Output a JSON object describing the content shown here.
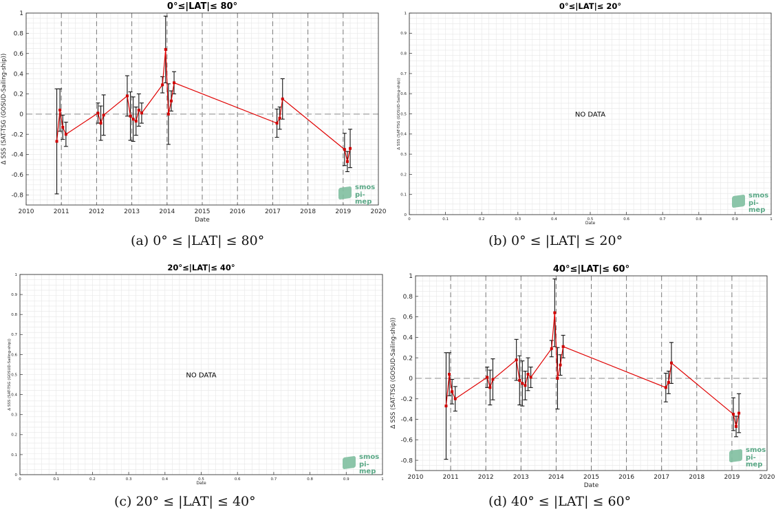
{
  "captions": [
    "(a) 0° ≤ |LAT| ≤ 80°",
    "(b) 0° ≤ |LAT| ≤ 20°",
    "(c) 20° ≤ |LAT| ≤ 40°",
    "(d) 40° ≤ |LAT| ≤ 60°"
  ],
  "logo": {
    "line1": "smos",
    "line2": "pi-mep"
  },
  "colors": {
    "series": "#e00000",
    "marker": "#d00000",
    "errorbar": "#111111",
    "zero_line": "#aaaaaa",
    "grid": "#e6e6e6",
    "year_line": "#777777",
    "logo": "#5aa886"
  },
  "chart_data": [
    {
      "type": "scatter",
      "title": "0°≤|LAT|≤ 80°",
      "xlabel": "Date",
      "ylabel": "Δ SSS (SAT-TSG (GOSUD-Sailing-ship))",
      "xlim": [
        2010,
        2020
      ],
      "ylim": [
        -0.9,
        1.0
      ],
      "xticks": [
        "2010",
        "2011",
        "2012",
        "2013",
        "2014",
        "2015",
        "2016",
        "2017",
        "2018",
        "2019",
        "2020"
      ],
      "yticks": [
        "-0.8",
        "-0.6",
        "-0.4",
        "-0.2",
        "0",
        "0.2",
        "0.4",
        "0.6",
        "0.8",
        "1"
      ],
      "grid": true,
      "year_lines": true,
      "series": [
        {
          "x": [
            2010.87,
            2010.96,
            2011.04,
            2011.13,
            2012.04,
            2012.12,
            2012.2,
            2012.87,
            2012.96,
            2013.04,
            2013.12,
            2013.2,
            2013.28,
            2013.87,
            2013.96,
            2014.04,
            2014.12,
            2014.2,
            2017.12,
            2017.2,
            2017.28,
            2019.04,
            2019.12,
            2019.2
          ],
          "y": [
            -0.27,
            0.04,
            -0.13,
            -0.2,
            0.01,
            -0.09,
            -0.01,
            0.18,
            -0.02,
            -0.05,
            -0.07,
            0.04,
            0.01,
            0.29,
            0.64,
            0.0,
            0.13,
            0.31,
            -0.09,
            -0.04,
            0.15,
            -0.35,
            -0.47,
            -0.34
          ],
          "err": [
            0.52,
            0.21,
            0.12,
            0.12,
            0.1,
            0.17,
            0.2,
            0.2,
            0.24,
            0.22,
            0.14,
            0.16,
            0.1,
            0.08,
            0.33,
            0.3,
            0.1,
            0.11,
            0.14,
            0.11,
            0.2,
            0.16,
            0.1,
            0.19
          ]
        }
      ]
    },
    {
      "type": "scatter",
      "title": "0°≤|LAT|≤ 20°",
      "xlabel": "Date",
      "ylabel": "Δ SSS (SAT-TSG (GOSUD-Sailing-ship))",
      "xlim": [
        0,
        1
      ],
      "ylim": [
        0,
        1
      ],
      "xticks": [
        "0",
        "0.1",
        "0.2",
        "0.3",
        "0.4",
        "0.5",
        "0.6",
        "0.7",
        "0.8",
        "0.9",
        "1"
      ],
      "yticks": [
        "0",
        "0.1",
        "0.2",
        "0.3",
        "0.4",
        "0.5",
        "0.6",
        "0.7",
        "0.8",
        "0.9",
        "1"
      ],
      "grid": true,
      "no_data_text": "NO DATA",
      "series": []
    },
    {
      "type": "scatter",
      "title": "20°≤|LAT|≤ 40°",
      "xlabel": "Date",
      "ylabel": "Δ SSS (SAT-TSG (GOSUD-Sailing-ship))",
      "xlim": [
        0,
        1
      ],
      "ylim": [
        0,
        1
      ],
      "xticks": [
        "0",
        "0.1",
        "0.2",
        "0.3",
        "0.4",
        "0.5",
        "0.6",
        "0.7",
        "0.8",
        "0.9",
        "1"
      ],
      "yticks": [
        "0",
        "0.1",
        "0.2",
        "0.3",
        "0.4",
        "0.5",
        "0.6",
        "0.7",
        "0.8",
        "0.9",
        "1"
      ],
      "grid": true,
      "no_data_text": "NO DATA",
      "series": []
    },
    {
      "type": "scatter",
      "title": "40°≤|LAT|≤ 60°",
      "xlabel": "Date",
      "ylabel": "Δ SSS (SAT-TSG (GOSUD-Sailing-ship))",
      "xlim": [
        2010,
        2020
      ],
      "ylim": [
        -0.9,
        1.0
      ],
      "xticks": [
        "2010",
        "2011",
        "2012",
        "2013",
        "2014",
        "2015",
        "2016",
        "2017",
        "2018",
        "2019",
        "2020"
      ],
      "yticks": [
        "-0.8",
        "-0.6",
        "-0.4",
        "-0.2",
        "0",
        "0.2",
        "0.4",
        "0.6",
        "0.8",
        "1"
      ],
      "grid": true,
      "year_lines": true,
      "series": [
        {
          "x": [
            2010.87,
            2010.96,
            2011.04,
            2011.13,
            2012.04,
            2012.12,
            2012.2,
            2012.87,
            2012.96,
            2013.04,
            2013.12,
            2013.2,
            2013.28,
            2013.87,
            2013.96,
            2014.04,
            2014.12,
            2014.2,
            2017.12,
            2017.2,
            2017.28,
            2019.04,
            2019.12,
            2019.2
          ],
          "y": [
            -0.27,
            0.04,
            -0.13,
            -0.2,
            0.01,
            -0.09,
            -0.01,
            0.18,
            -0.02,
            -0.05,
            -0.07,
            0.04,
            0.01,
            0.29,
            0.64,
            0.0,
            0.13,
            0.31,
            -0.09,
            -0.04,
            0.15,
            -0.35,
            -0.47,
            -0.34
          ],
          "err": [
            0.52,
            0.21,
            0.12,
            0.12,
            0.1,
            0.17,
            0.2,
            0.2,
            0.24,
            0.22,
            0.14,
            0.16,
            0.1,
            0.08,
            0.33,
            0.3,
            0.1,
            0.11,
            0.14,
            0.11,
            0.2,
            0.16,
            0.1,
            0.19
          ]
        }
      ]
    }
  ]
}
